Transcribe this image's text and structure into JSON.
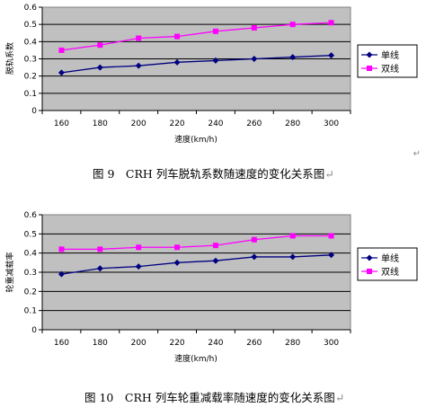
{
  "chart_data": [
    {
      "type": "line",
      "caption": "图 9　CRH 列车脱轨系数随速度的变化关系图",
      "xlabel": "速度(km/h)",
      "ylabel": "脱轨系数",
      "categories": [
        "160",
        "180",
        "200",
        "220",
        "240",
        "260",
        "280",
        "300"
      ],
      "yticks": [
        "0",
        "0.1",
        "0.2",
        "0.3",
        "0.4",
        "0.5",
        "0.6"
      ],
      "ylim": [
        0,
        0.6
      ],
      "grid": true,
      "legend_position": "right",
      "series": [
        {
          "name": "单线",
          "color": "#000080",
          "marker": "diamond",
          "values": [
            0.22,
            0.25,
            0.26,
            0.28,
            0.29,
            0.3,
            0.31,
            0.32
          ]
        },
        {
          "name": "双线",
          "color": "#ff00ff",
          "marker": "square",
          "values": [
            0.35,
            0.38,
            0.42,
            0.43,
            0.46,
            0.48,
            0.5,
            0.51
          ]
        }
      ]
    },
    {
      "type": "line",
      "caption": "图 10　CRH 列车轮重减载率随速度的变化关系图",
      "xlabel": "速度(km/h)",
      "ylabel": "轮重减载率",
      "categories": [
        "160",
        "180",
        "200",
        "220",
        "240",
        "260",
        "280",
        "300"
      ],
      "yticks": [
        "0",
        "0.1",
        "0.2",
        "0.3",
        "0.4",
        "0.5",
        "0.6"
      ],
      "ylim": [
        0,
        0.6
      ],
      "grid": true,
      "legend_position": "right",
      "series": [
        {
          "name": "单线",
          "color": "#000080",
          "marker": "diamond",
          "values": [
            0.29,
            0.32,
            0.33,
            0.35,
            0.36,
            0.38,
            0.38,
            0.39
          ]
        },
        {
          "name": "双线",
          "color": "#ff00ff",
          "marker": "square",
          "values": [
            0.42,
            0.42,
            0.43,
            0.43,
            0.44,
            0.47,
            0.49,
            0.49
          ]
        }
      ]
    }
  ],
  "paragraph_mark": "↵"
}
